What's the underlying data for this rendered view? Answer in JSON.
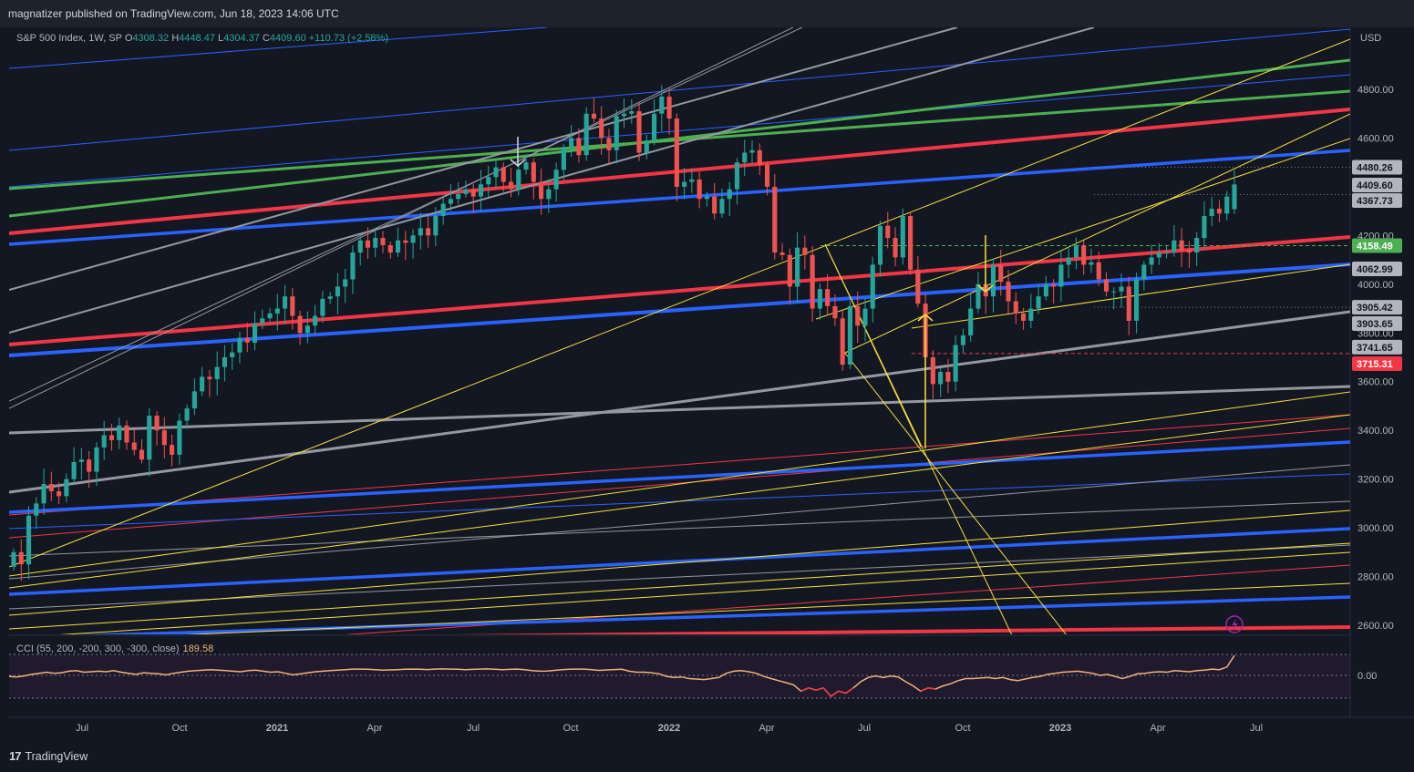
{
  "publisher": "magnatizer published on TradingView.com, Jun 18, 2023 14:06 UTC",
  "brand": "TradingView",
  "legend": {
    "symbol": "S&P 500 Index, 1W, SP",
    "open_key": "O",
    "open": "4308.32",
    "high_key": "H",
    "high": "4448.47",
    "low_key": "L",
    "low": "4304.37",
    "close_key": "C",
    "close": "4409.60",
    "change": "+110.73 (+2.58%)"
  },
  "currency": "USD",
  "cci": {
    "label": "CCI (55, 200, -200, 300, -300, close)",
    "value": "189.58",
    "zero_tick": "0.00"
  },
  "colors": {
    "background": "#131722",
    "up": "#26a69a",
    "down": "#ef5350",
    "red_line": "#f23645",
    "blue_line": "#2962ff",
    "green_line": "#4caf50",
    "grey_line": "#9598a1",
    "yellow_line": "#f7e03c",
    "cci_line": "#f0b27a"
  },
  "chart_data": {
    "type": "candlestick",
    "title": "S&P 500 Index, 1W, SP",
    "ylim": [
      2540,
      5000
    ],
    "y_ticks": [
      "4800.00",
      "4600.00",
      "4200.00",
      "4000.00",
      "3800.00",
      "3600.00",
      "3400.00",
      "3200.00",
      "3000.00",
      "2800.00",
      "2600.00"
    ],
    "x_ticks": [
      "Jul",
      "Oct",
      "2021",
      "Apr",
      "Jul",
      "Oct",
      "2022",
      "Apr",
      "Jul",
      "Oct",
      "2023",
      "Apr",
      "Jul"
    ],
    "price_labels": [
      {
        "text": "4480.26",
        "value": 4480.26,
        "bg": "#b2b5be",
        "fg": "#131722"
      },
      {
        "text": "4409.60",
        "value": 4409.6,
        "bg": "#b2b5be",
        "fg": "#131722"
      },
      {
        "text": "4367.73",
        "value": 4367.73,
        "bg": "#b2b5be",
        "fg": "#131722"
      },
      {
        "text": "4158.49",
        "value": 4158.49,
        "bg": "#4caf50",
        "fg": "#ffffff"
      },
      {
        "text": "4062.99",
        "value": 4062.99,
        "bg": "#b2b5be",
        "fg": "#131722"
      },
      {
        "text": "3905.42",
        "value": 3905.42,
        "bg": "#b2b5be",
        "fg": "#131722"
      },
      {
        "text": "3903.65",
        "value": 3903.65,
        "bg": "#b2b5be",
        "fg": "#131722"
      },
      {
        "text": "3741.65",
        "value": 3741.65,
        "bg": "#b2b5be",
        "fg": "#131722"
      },
      {
        "text": "3715.31",
        "value": 3715.31,
        "bg": "#f23645",
        "fg": "#ffffff"
      }
    ],
    "closes": [
      2900,
      2850,
      3050,
      3100,
      3180,
      3150,
      3130,
      3200,
      3270,
      3280,
      3230,
      3330,
      3380,
      3360,
      3420,
      3350,
      3320,
      3280,
      3460,
      3400,
      3340,
      3300,
      3440,
      3490,
      3560,
      3620,
      3610,
      3660,
      3700,
      3720,
      3780,
      3760,
      3840,
      3860,
      3880,
      3900,
      3950,
      3870,
      3800,
      3830,
      3870,
      3940,
      3950,
      3990,
      4020,
      4130,
      4180,
      4150,
      4190,
      4160,
      4130,
      4180,
      4170,
      4200,
      4230,
      4200,
      4280,
      4330,
      4350,
      4370,
      4390,
      4360,
      4410,
      4440,
      4480,
      4420,
      4390,
      4470,
      4500,
      4420,
      4350,
      4390,
      4470,
      4560,
      4600,
      4530,
      4700,
      4680,
      4600,
      4550,
      4690,
      4700,
      4710,
      4540,
      4590,
      4700,
      4770,
      4680,
      4400,
      4420,
      4430,
      4350,
      4360,
      4290,
      4350,
      4390,
      4500,
      4540,
      4550,
      4490,
      4400,
      4130,
      4120,
      3990,
      4150,
      4120,
      3900,
      3980,
      3910,
      3860,
      3670,
      3910,
      3830,
      3900,
      4080,
      4240,
      4190,
      4110,
      4280,
      4060,
      3920,
      3700,
      3590,
      3640,
      3600,
      3750,
      3790,
      3900,
      4000,
      3950,
      4080,
      4010,
      3930,
      3880,
      3850,
      3900,
      3950,
      4000,
      3990,
      4080,
      4110,
      4160,
      4080,
      4090,
      4020,
      3970,
      3970,
      3990,
      3850,
      4020,
      4080,
      4110,
      4130,
      4130,
      4180,
      4140,
      4130,
      4190,
      4280,
      4310,
      4290,
      4360,
      4409.6
    ],
    "cci": [
      -10,
      -15,
      -5,
      10,
      20,
      30,
      20,
      25,
      40,
      45,
      30,
      35,
      40,
      35,
      45,
      30,
      20,
      10,
      25,
      20,
      15,
      5,
      20,
      30,
      40,
      45,
      50,
      55,
      50,
      45,
      40,
      35,
      45,
      50,
      40,
      30,
      35,
      20,
      5,
      15,
      25,
      35,
      40,
      45,
      50,
      55,
      60,
      60,
      58,
      55,
      50,
      52,
      55,
      58,
      60,
      58,
      56,
      60,
      62,
      60,
      58,
      55,
      57,
      60,
      62,
      58,
      55,
      57,
      60,
      55,
      45,
      40,
      42,
      48,
      55,
      58,
      60,
      60,
      55,
      48,
      52,
      56,
      58,
      40,
      30,
      30,
      25,
      15,
      -10,
      -20,
      -15,
      -30,
      -35,
      -40,
      -30,
      -20,
      20,
      40,
      45,
      35,
      20,
      -10,
      -30,
      -50,
      -70,
      -90,
      -150,
      -120,
      -140,
      -120,
      -200,
      -150,
      -170,
      -120,
      -60,
      -20,
      -5,
      -20,
      -5,
      -15,
      -60,
      -100,
      -150,
      -120,
      -130,
      -100,
      -80,
      -50,
      -30,
      -30,
      -25,
      -20,
      -30,
      -20,
      -40,
      -50,
      -35,
      -20,
      -10,
      10,
      20,
      30,
      35,
      40,
      30,
      20,
      0,
      10,
      -10,
      -30,
      -10,
      15,
      20,
      30,
      35,
      30,
      45,
      40,
      35,
      45,
      50,
      60,
      55,
      80,
      189.58
    ]
  }
}
